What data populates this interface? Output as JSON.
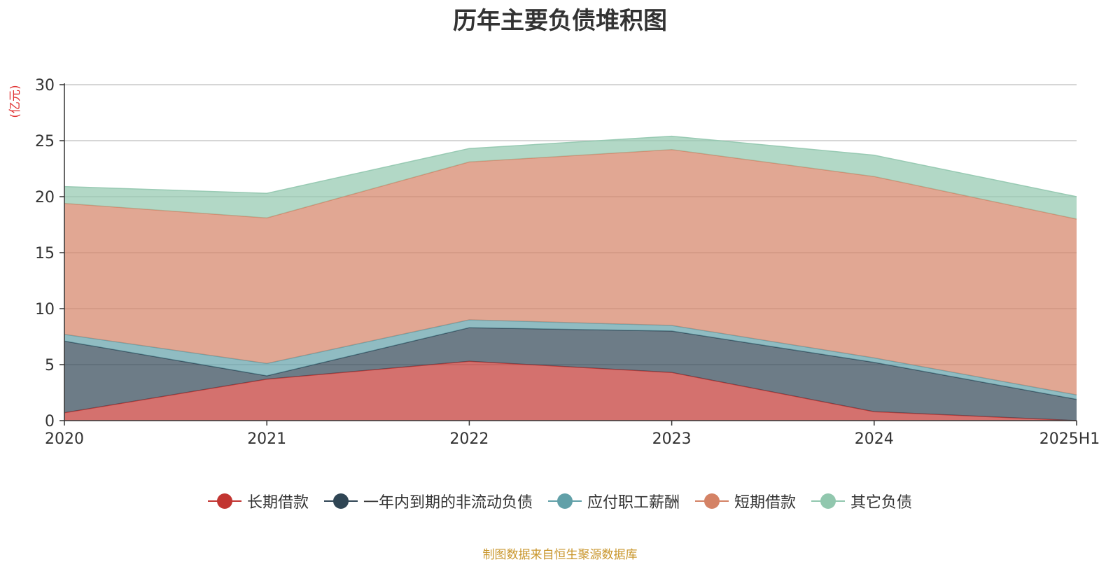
{
  "chart_data": {
    "type": "area",
    "stacked": true,
    "title": "历年主要负债堆积图",
    "ylabel": "(亿元)",
    "ylim": [
      0,
      30
    ],
    "yticks": [
      0,
      5,
      10,
      15,
      20,
      25,
      30
    ],
    "categories": [
      "2020",
      "2021",
      "2022",
      "2023",
      "2024",
      "2025H1"
    ],
    "grid": true,
    "legend_position": "bottom",
    "series": [
      {
        "name": "长期借款",
        "color": "#c23531",
        "values": [
          0.7,
          3.7,
          5.3,
          4.3,
          0.8,
          0.0
        ]
      },
      {
        "name": "一年内到期的非流动负债",
        "color": "#2f4554",
        "values": [
          6.4,
          0.3,
          3.0,
          3.7,
          4.4,
          1.9
        ]
      },
      {
        "name": "应付职工薪酬",
        "color": "#61a0a8",
        "values": [
          0.6,
          1.1,
          0.7,
          0.5,
          0.4,
          0.4
        ]
      },
      {
        "name": "短期借款",
        "color": "#d48265",
        "values": [
          11.7,
          13.0,
          14.1,
          15.7,
          16.2,
          15.7
        ]
      },
      {
        "name": "其它负债",
        "color": "#91c7ae",
        "values": [
          1.5,
          2.2,
          1.2,
          1.2,
          1.9,
          2.0
        ]
      }
    ]
  },
  "source_note": "制图数据来自恒生聚源数据库"
}
